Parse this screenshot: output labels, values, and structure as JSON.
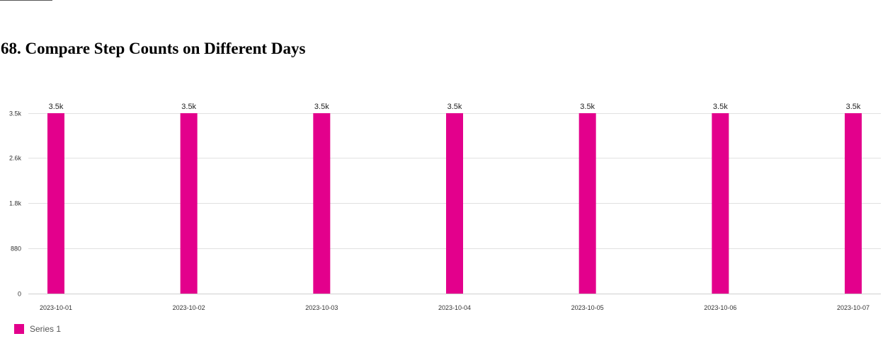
{
  "page": {
    "title": "68. Compare Step Counts on Different Days"
  },
  "chart_data": {
    "type": "bar",
    "categories": [
      "2023-10-01",
      "2023-10-02",
      "2023-10-03",
      "2023-10-04",
      "2023-10-05",
      "2023-10-06",
      "2023-10-07"
    ],
    "series": [
      {
        "name": "Series 1",
        "values": [
          3500,
          3500,
          3500,
          3500,
          3500,
          3500,
          3500
        ],
        "data_labels": [
          "3.5k",
          "3.5k",
          "3.5k",
          "3.5k",
          "3.5k",
          "3.5k",
          "3.5k"
        ],
        "color": "#e3008c"
      }
    ],
    "ylim": [
      0,
      3500
    ],
    "yticks": [
      0,
      880,
      1760,
      2640,
      3500
    ],
    "ytick_labels": [
      "0",
      "880",
      "1.8k",
      "2.6k",
      "3.5k"
    ],
    "grid": true,
    "gridline_color": "#e1e1e1",
    "legend_position": "bottom-left",
    "xlabel": "",
    "ylabel": ""
  }
}
